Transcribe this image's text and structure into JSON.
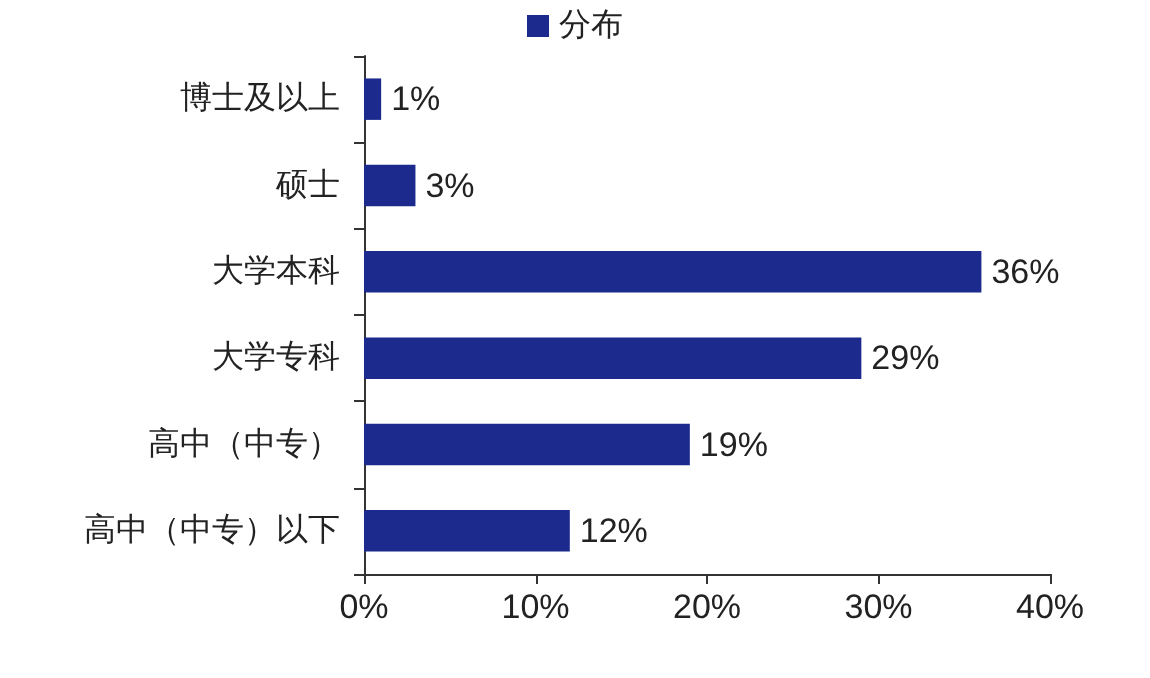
{
  "chart_data": {
    "type": "bar",
    "orientation": "horizontal",
    "categories": [
      "博士及以上",
      "硕士",
      "大学本科",
      "大学专科",
      "高中（中专）",
      "高中（中专）以下"
    ],
    "series": [
      {
        "name": "分布",
        "color": "#1b2a8c",
        "values": [
          1,
          3,
          36,
          29,
          19,
          12
        ],
        "value_labels": [
          "1%",
          "3%",
          "36%",
          "29%",
          "19%",
          "12%"
        ]
      }
    ],
    "xlim": [
      0,
      40
    ],
    "xticks": [
      {
        "value": 0,
        "label": "0%"
      },
      {
        "value": 10,
        "label": "10%"
      },
      {
        "value": 20,
        "label": "20%"
      },
      {
        "value": 30,
        "label": "30%"
      },
      {
        "value": 40,
        "label": "40%"
      }
    ],
    "grid": false,
    "legend": "top"
  }
}
